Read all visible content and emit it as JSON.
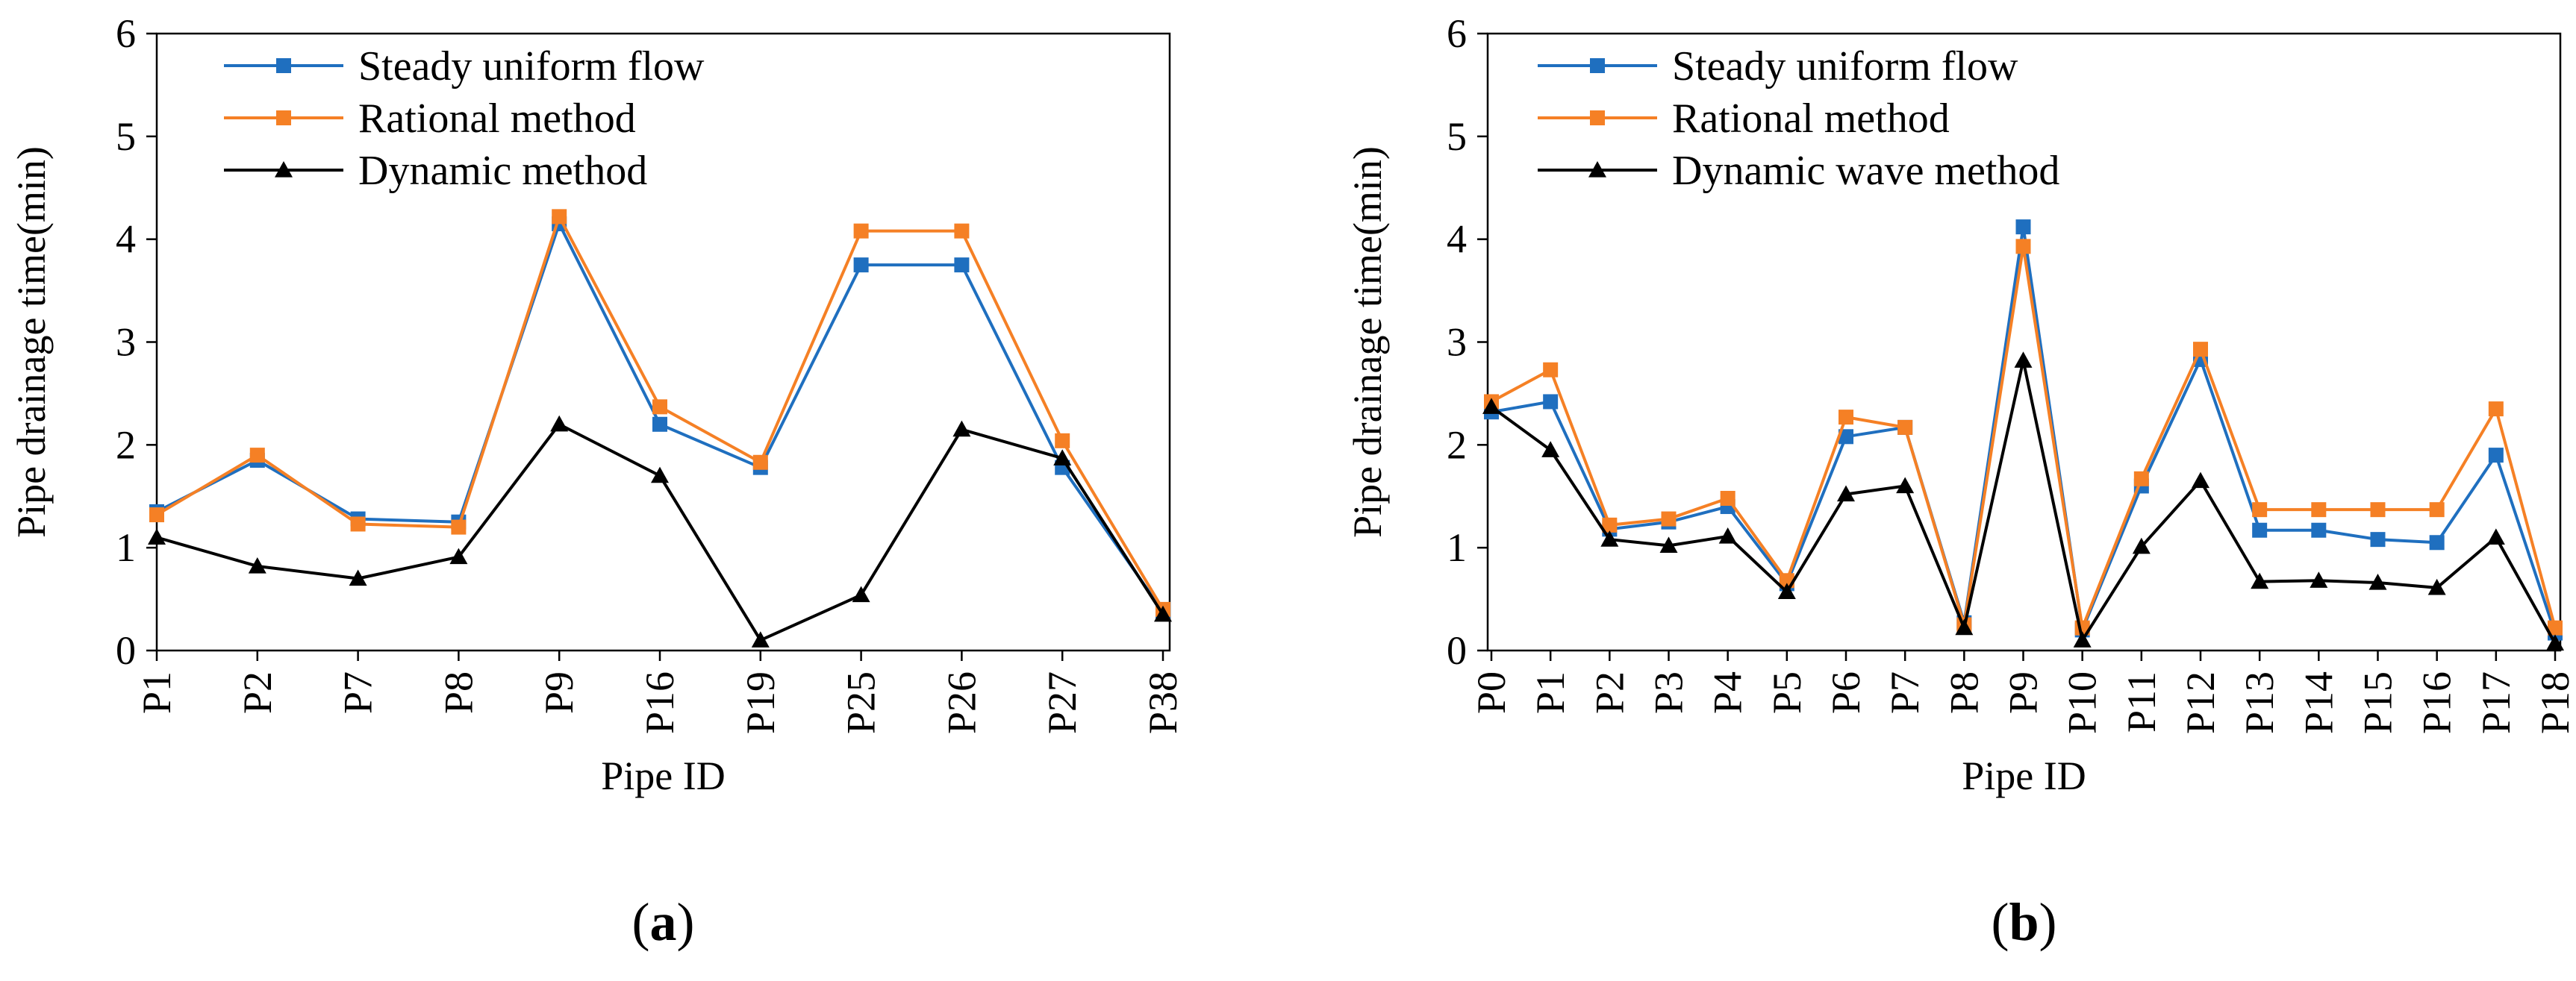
{
  "chart_data": [
    {
      "type": "line",
      "panel_label_open": "(",
      "panel_label_letter": "a",
      "panel_label_close": ")",
      "xlabel": "Pipe ID",
      "ylabel": "Pipe drainage time(min)",
      "ylim": [
        0,
        6
      ],
      "yticks": [
        0,
        1,
        2,
        3,
        4,
        5,
        6
      ],
      "legend_position": "top-left",
      "categories": [
        "P1",
        "P2",
        "P7",
        "P8",
        "P9",
        "P16",
        "P19",
        "P25",
        "P26",
        "P27",
        "P38"
      ],
      "series": [
        {
          "name": "Steady uniform flow",
          "color": "#1f6fbf",
          "marker": "square",
          "values": [
            1.35,
            1.85,
            1.28,
            1.25,
            4.15,
            2.2,
            1.78,
            3.75,
            3.75,
            1.78,
            0.38
          ]
        },
        {
          "name": "Rational method",
          "color": "#f58025",
          "marker": "square",
          "values": [
            1.32,
            1.9,
            1.23,
            1.2,
            4.22,
            2.37,
            1.83,
            4.08,
            4.08,
            2.04,
            0.4
          ]
        },
        {
          "name": "Dynamic method",
          "color": "#000000",
          "marker": "triangle",
          "values": [
            1.1,
            0.82,
            0.7,
            0.91,
            2.2,
            1.7,
            0.1,
            0.54,
            2.15,
            1.87,
            0.35
          ]
        }
      ]
    },
    {
      "type": "line",
      "panel_label_open": "(",
      "panel_label_letter": "b",
      "panel_label_close": ")",
      "xlabel": "Pipe ID",
      "ylabel": "Pipe drainage time(min)",
      "ylim": [
        0,
        6
      ],
      "yticks": [
        0,
        1,
        2,
        3,
        4,
        5,
        6
      ],
      "legend_position": "top-left",
      "categories": [
        "P0",
        "P1",
        "P2",
        "P3",
        "P4",
        "P5",
        "P6",
        "P7",
        "P8",
        "P9",
        "P10",
        "P11",
        "P12",
        "P13",
        "P14",
        "P15",
        "P16",
        "P17",
        "P18"
      ],
      "series": [
        {
          "name": "Steady uniform flow",
          "color": "#1f6fbf",
          "marker": "square",
          "values": [
            2.32,
            2.42,
            1.18,
            1.25,
            1.4,
            0.65,
            2.08,
            2.17,
            0.27,
            4.12,
            0.2,
            1.6,
            2.83,
            1.17,
            1.17,
            1.08,
            1.05,
            1.9,
            0.17
          ]
        },
        {
          "name": "Rational method",
          "color": "#f58025",
          "marker": "square",
          "values": [
            2.42,
            2.73,
            1.22,
            1.28,
            1.48,
            0.68,
            2.27,
            2.17,
            0.25,
            3.93,
            0.22,
            1.67,
            2.93,
            1.37,
            1.37,
            1.37,
            1.37,
            2.35,
            0.22
          ]
        },
        {
          "name": "Dynamic wave method",
          "color": "#000000",
          "marker": "triangle",
          "values": [
            2.37,
            1.95,
            1.08,
            1.02,
            1.11,
            0.57,
            1.52,
            1.6,
            0.22,
            2.82,
            0.1,
            1.01,
            1.65,
            0.67,
            0.68,
            0.66,
            0.61,
            1.1,
            0.07
          ]
        }
      ]
    }
  ]
}
